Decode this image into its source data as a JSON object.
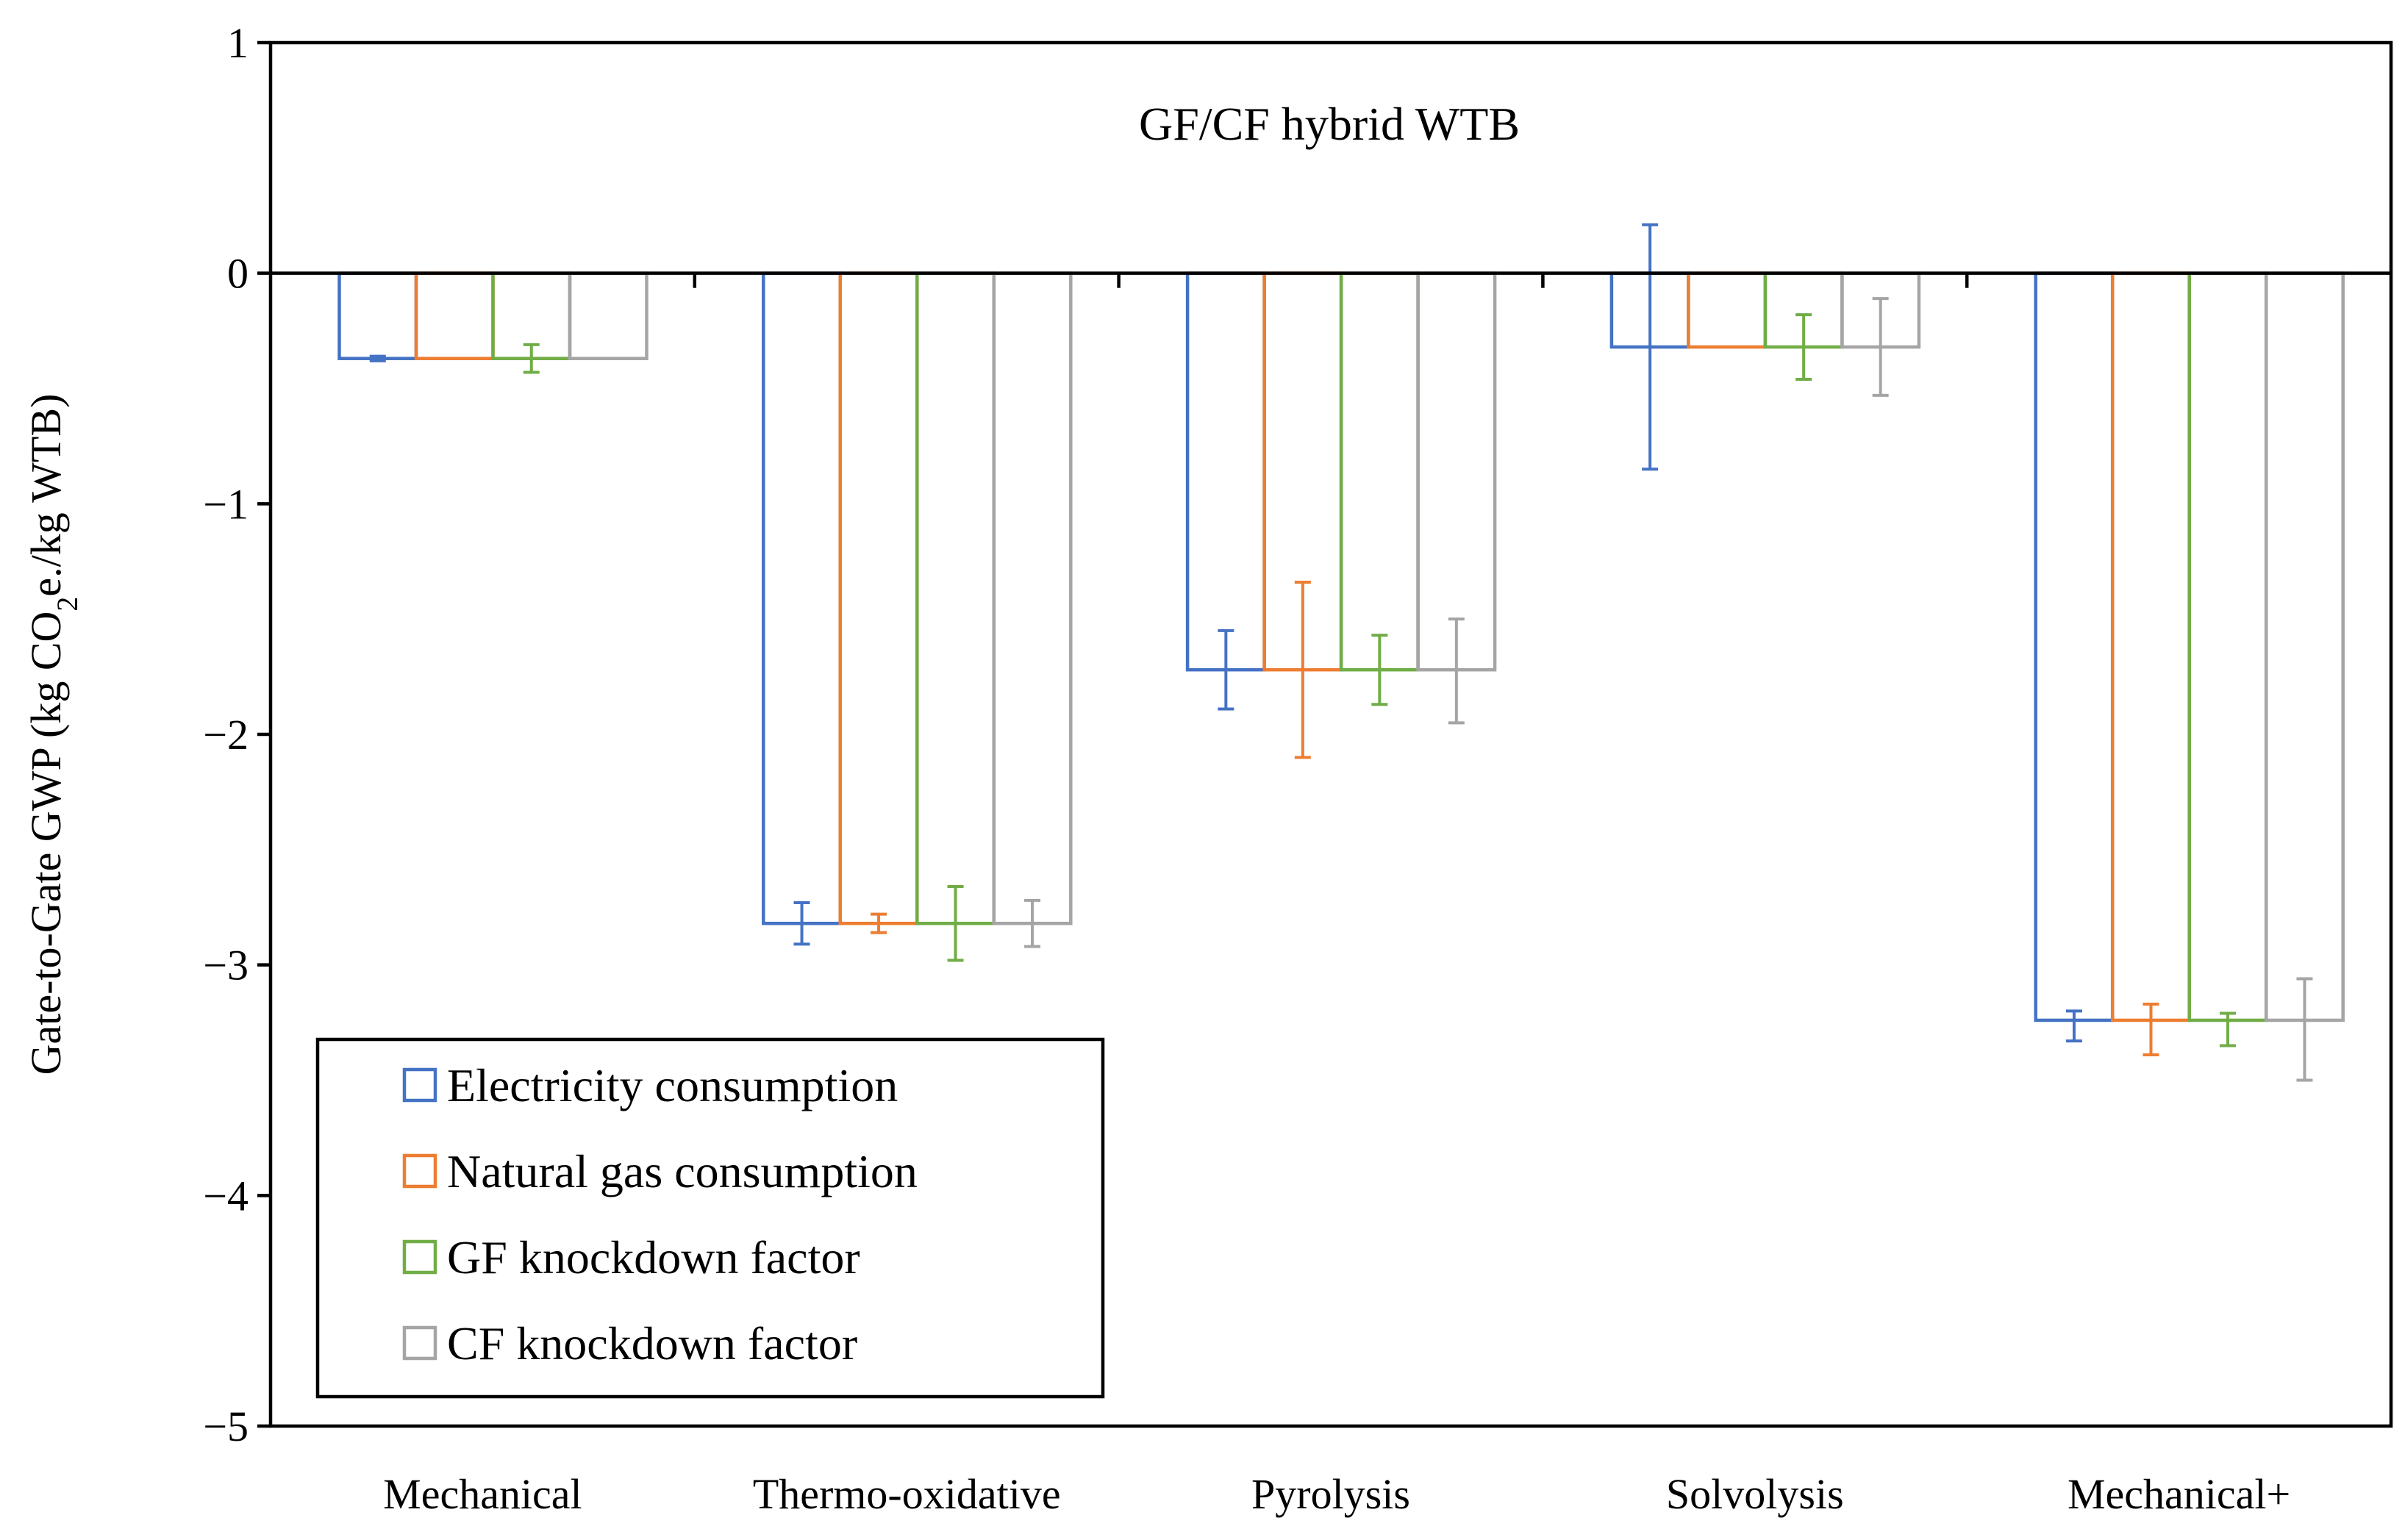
{
  "chart_data": {
    "type": "bar",
    "title": "GF/CF hybrid WTB",
    "xlabel": "",
    "ylabel": {
      "prefix": "Gate-to-Gate GWP (kg CO",
      "subscript": "2",
      "suffix": "e./kg WTB)"
    },
    "ylim": [
      -5,
      1
    ],
    "yticks": [
      1,
      0,
      -1,
      -2,
      -3,
      -4,
      -5
    ],
    "ytick_labels": [
      "1",
      "0",
      "−1",
      "−2",
      "−3",
      "−4",
      "−5"
    ],
    "categories": [
      "Mechanical",
      "Thermo-oxidative",
      "Pyrolysis",
      "Solvolysis",
      "Mechanical+"
    ],
    "legend_position": "bottom-left",
    "bar_fill": "none",
    "series": [
      {
        "name": "Electricity consumption",
        "color": "#4472C4",
        "values": [
          -0.37,
          -2.82,
          -1.72,
          -0.32,
          -3.24
        ],
        "err_low": [
          -0.38,
          -2.91,
          -1.89,
          -0.85,
          -3.33
        ],
        "err_high": [
          -0.36,
          -2.73,
          -1.55,
          0.21,
          -3.2
        ]
      },
      {
        "name": "Natural gas consumption",
        "color": "#ED7D31",
        "values": [
          -0.37,
          -2.82,
          -1.72,
          -0.32,
          -3.24
        ],
        "err_low": [
          -0.37,
          -2.86,
          -2.1,
          -0.32,
          -3.39
        ],
        "err_high": [
          -0.37,
          -2.78,
          -1.34,
          -0.32,
          -3.17
        ]
      },
      {
        "name": "GF knockdown factor",
        "color": "#70AD47",
        "values": [
          -0.37,
          -2.82,
          -1.72,
          -0.32,
          -3.24
        ],
        "err_low": [
          -0.43,
          -2.98,
          -1.87,
          -0.46,
          -3.35
        ],
        "err_high": [
          -0.31,
          -2.66,
          -1.57,
          -0.18,
          -3.21
        ]
      },
      {
        "name": "CF knockdown factor",
        "color": "#A5A5A5",
        "values": [
          -0.37,
          -2.82,
          -1.72,
          -0.32,
          -3.24
        ],
        "err_low": [
          -0.37,
          -2.92,
          -1.95,
          -0.53,
          -3.5
        ],
        "err_high": [
          -0.37,
          -2.72,
          -1.5,
          -0.11,
          -3.06
        ]
      }
    ]
  }
}
